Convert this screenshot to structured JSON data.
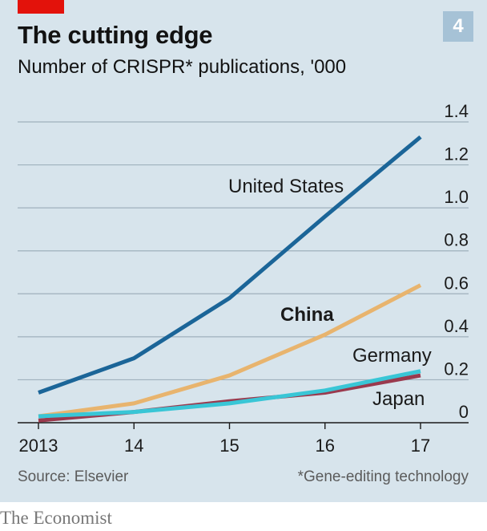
{
  "header": {
    "title": "The cutting edge",
    "subtitle": "Number of CRISPR* publications, '000",
    "chart_number": "4"
  },
  "footer": {
    "source": "Source: Elsevier",
    "footnote": "*Gene-editing technology",
    "brand": "The Economist"
  },
  "colors": {
    "United States": "#1b6598",
    "China": "#e8b46e",
    "Germany": "#39c6d6",
    "Japan": "#9a3a4e",
    "accent": "#e3120b",
    "background": "#d7e4ec"
  },
  "chart_data": {
    "type": "line",
    "title": "The cutting edge",
    "subtitle": "Number of CRISPR* publications, '000",
    "x": [
      "2013",
      "14",
      "15",
      "16",
      "17"
    ],
    "ylim": [
      0,
      1.4
    ],
    "yticks": [
      "0",
      "0.2",
      "0.4",
      "0.6",
      "0.8",
      "1.0",
      "1.2",
      "1.4"
    ],
    "y_axis_position": "right",
    "grid": true,
    "series": [
      {
        "name": "United States",
        "values": [
          0.14,
          0.3,
          0.58,
          0.96,
          1.33
        ],
        "bold": false
      },
      {
        "name": "China",
        "values": [
          0.03,
          0.09,
          0.22,
          0.41,
          0.64
        ],
        "bold": true
      },
      {
        "name": "Japan",
        "values": [
          0.01,
          0.05,
          0.1,
          0.14,
          0.22
        ],
        "bold": false
      },
      {
        "name": "Germany",
        "values": [
          0.03,
          0.05,
          0.09,
          0.15,
          0.24
        ],
        "bold": false
      }
    ]
  }
}
